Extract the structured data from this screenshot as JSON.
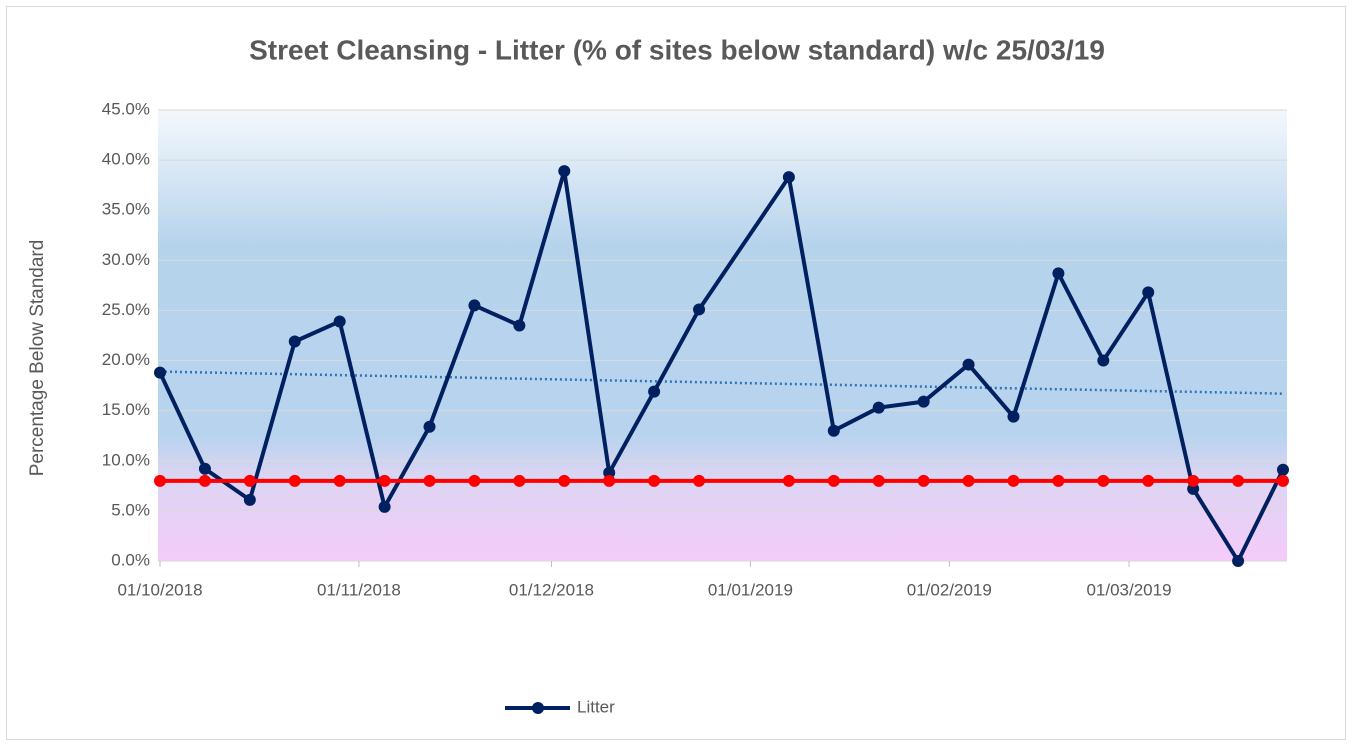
{
  "chart_data": {
    "type": "line",
    "title": "Street Cleansing - Litter (% of sites below standard) w/c 25/03/19",
    "y_label": "Percentage Below Standard",
    "x": [
      "01/10/2018",
      "08/10/2018",
      "15/10/2018",
      "22/10/2018",
      "29/10/2018",
      "05/11/2018",
      "12/11/2018",
      "19/11/2018",
      "26/11/2018",
      "03/12/2018",
      "10/12/2018",
      "17/12/2018",
      "24/12/2018",
      "07/01/2019",
      "14/01/2019",
      "21/01/2019",
      "28/01/2019",
      "04/02/2019",
      "11/02/2019",
      "18/02/2019",
      "25/02/2019",
      "04/03/2019",
      "11/03/2019",
      "18/03/2019",
      "25/03/2019"
    ],
    "series": [
      {
        "name": "Litter",
        "color": "#002060",
        "values": [
          18.8,
          9.2,
          6.1,
          21.9,
          23.9,
          5.4,
          13.4,
          25.5,
          23.5,
          38.9,
          8.8,
          16.9,
          25.1,
          38.3,
          13.0,
          15.3,
          15.9,
          19.6,
          14.4,
          28.7,
          20.0,
          26.8,
          7.2,
          0.0,
          9.1
        ]
      }
    ],
    "target": {
      "color": "#ff0000",
      "values": [
        8.0,
        8.0,
        8.0,
        8.0,
        8.0,
        8.0,
        8.0,
        8.0,
        8.0,
        8.0,
        8.0,
        8.0,
        8.0,
        8.0,
        8.0,
        8.0,
        8.0,
        8.0,
        8.0,
        8.0,
        8.0,
        8.0,
        8.0,
        8.0,
        8.0
      ]
    },
    "trendline": {
      "color": "#2e75b6",
      "start": 18.9,
      "end": 16.7
    },
    "xlim": [
      "01/10/2018",
      "25/03/2019"
    ],
    "xticks": [
      "01/10/2018",
      "01/11/2018",
      "01/12/2018",
      "01/01/2019",
      "01/02/2019",
      "01/03/2019"
    ],
    "ylim": [
      0,
      45
    ],
    "yticks": [
      {
        "value": 0,
        "label": "0.0%"
      },
      {
        "value": 5,
        "label": "5.0%"
      },
      {
        "value": 10,
        "label": "10.0%"
      },
      {
        "value": 15,
        "label": "15.0%"
      },
      {
        "value": 20,
        "label": "20.0%"
      },
      {
        "value": 25,
        "label": "25.0%"
      },
      {
        "value": 30,
        "label": "30.0%"
      },
      {
        "value": 35,
        "label": "35.0%"
      },
      {
        "value": 40,
        "label": "40.0%"
      },
      {
        "value": 45,
        "label": "45.0%"
      }
    ],
    "grid": true,
    "legend": "bottom"
  }
}
